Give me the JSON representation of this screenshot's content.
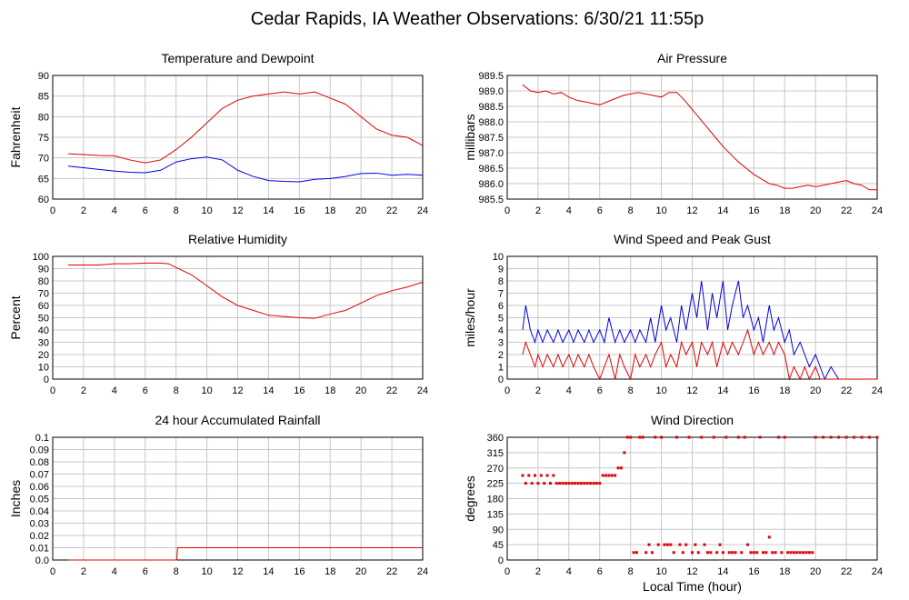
{
  "page_title": "Cedar Rapids, IA Weather Observations: 6/30/21 11:55p",
  "chart_data": [
    {
      "id": "temp",
      "type": "line",
      "title": "Temperature and Dewpoint",
      "ylabel": "Fahrenheit",
      "xlabel": "",
      "xlim": [
        0,
        24
      ],
      "ylim": [
        60,
        90
      ],
      "xticks": [
        0,
        2,
        4,
        6,
        8,
        10,
        12,
        14,
        16,
        18,
        20,
        22,
        24
      ],
      "yticks": [
        60,
        65,
        70,
        75,
        80,
        85,
        90
      ],
      "ytick_labels": [
        "60",
        "65",
        "70",
        "75",
        "80",
        "85",
        "90"
      ],
      "grid": true,
      "series": [
        {
          "color": "#e00000",
          "x": [
            1,
            2,
            3,
            4,
            5,
            6,
            7,
            8,
            9,
            10,
            11,
            12,
            13,
            14,
            15,
            16,
            17,
            18,
            19,
            20,
            21,
            22,
            23,
            24
          ],
          "y": [
            71,
            70.8,
            70.6,
            70.5,
            69.5,
            68.8,
            69.5,
            72,
            75,
            78.5,
            82,
            84,
            85,
            85.5,
            86,
            85.5,
            86,
            84.5,
            83,
            80,
            77,
            75.5,
            75,
            73
          ]
        },
        {
          "color": "#0000e0",
          "x": [
            1,
            2,
            3,
            4,
            5,
            6,
            7,
            8,
            9,
            10,
            11,
            12,
            13,
            14,
            15,
            16,
            17,
            18,
            19,
            20,
            21,
            22,
            23,
            24
          ],
          "y": [
            68,
            67.6,
            67.2,
            66.8,
            66.5,
            66.4,
            67,
            69,
            69.8,
            70.2,
            69.5,
            67,
            65.5,
            64.5,
            64.3,
            64.2,
            64.8,
            65,
            65.5,
            66.2,
            66.3,
            65.8,
            66,
            65.8
          ]
        }
      ]
    },
    {
      "id": "pressure",
      "type": "line",
      "title": "Air Pressure",
      "ylabel": "millibars",
      "xlabel": "",
      "xlim": [
        0,
        24
      ],
      "ylim": [
        985.5,
        989.5
      ],
      "xticks": [
        0,
        2,
        4,
        6,
        8,
        10,
        12,
        14,
        16,
        18,
        20,
        22,
        24
      ],
      "yticks": [
        985.5,
        986,
        986.5,
        987,
        987.5,
        988,
        988.5,
        989,
        989.5
      ],
      "ytick_labels": [
        "985.5",
        "986.0",
        "986.5",
        "987.0",
        "987.5",
        "988.0",
        "988.5",
        "989.0",
        "989.5"
      ],
      "grid": true,
      "series": [
        {
          "color": "#e00000",
          "x": [
            1,
            1.5,
            2,
            2.5,
            3,
            3.5,
            4,
            4.5,
            5,
            5.5,
            6,
            6.5,
            7,
            7.5,
            8,
            8.5,
            9,
            9.5,
            10,
            10.5,
            11,
            11.5,
            12,
            12.5,
            13,
            13.5,
            14,
            14.5,
            15,
            15.5,
            16,
            16.5,
            17,
            17.5,
            18,
            18.5,
            19,
            19.5,
            20,
            20.5,
            21,
            21.5,
            22,
            22.5,
            23,
            23.5,
            24
          ],
          "y": [
            989.2,
            989.0,
            988.95,
            989.0,
            988.9,
            988.95,
            988.8,
            988.7,
            988.65,
            988.6,
            988.55,
            988.65,
            988.75,
            988.85,
            988.9,
            988.95,
            988.9,
            988.85,
            988.8,
            988.95,
            988.95,
            988.7,
            988.4,
            988.1,
            987.8,
            987.5,
            987.2,
            986.95,
            986.7,
            986.5,
            986.3,
            986.15,
            986.0,
            985.95,
            985.85,
            985.85,
            985.9,
            985.95,
            985.9,
            985.95,
            986.0,
            986.05,
            986.1,
            986.0,
            985.95,
            985.8,
            985.8
          ]
        }
      ]
    },
    {
      "id": "humidity",
      "type": "line",
      "title": "Relative Humidity",
      "ylabel": "Percent",
      "xlabel": "",
      "xlim": [
        0,
        24
      ],
      "ylim": [
        0,
        100
      ],
      "xticks": [
        0,
        2,
        4,
        6,
        8,
        10,
        12,
        14,
        16,
        18,
        20,
        22,
        24
      ],
      "yticks": [
        0,
        10,
        20,
        30,
        40,
        50,
        60,
        70,
        80,
        90,
        100
      ],
      "ytick_labels": [
        "0",
        "10",
        "20",
        "30",
        "40",
        "50",
        "60",
        "70",
        "80",
        "90",
        "100"
      ],
      "grid": true,
      "series": [
        {
          "color": "#e00000",
          "x": [
            1,
            2,
            3,
            4,
            5,
            6,
            7,
            7.5,
            8,
            9,
            10,
            11,
            12,
            13,
            14,
            15,
            16,
            17,
            18,
            19,
            20,
            21,
            22,
            23,
            24
          ],
          "y": [
            93,
            93,
            93,
            94,
            94,
            94.5,
            94.5,
            94,
            91,
            85,
            76,
            67,
            60,
            56,
            52,
            51,
            50,
            49.5,
            53,
            56,
            62,
            68,
            72,
            75,
            79
          ]
        }
      ]
    },
    {
      "id": "wind",
      "type": "line",
      "title": "Wind Speed and Peak Gust",
      "ylabel": "miles/hour",
      "xlabel": "",
      "xlim": [
        0,
        24
      ],
      "ylim": [
        0,
        10
      ],
      "xticks": [
        0,
        2,
        4,
        6,
        8,
        10,
        12,
        14,
        16,
        18,
        20,
        22,
        24
      ],
      "yticks": [
        0,
        1,
        2,
        3,
        4,
        5,
        6,
        7,
        8,
        9,
        10
      ],
      "ytick_labels": [
        "0",
        "1",
        "2",
        "3",
        "4",
        "5",
        "6",
        "7",
        "8",
        "9",
        "10"
      ],
      "grid": true,
      "series": [
        {
          "color": "#0000e0",
          "x": [
            1,
            1.2,
            1.5,
            1.8,
            2,
            2.3,
            2.6,
            3,
            3.3,
            3.6,
            4,
            4.3,
            4.6,
            5,
            5.3,
            5.6,
            6,
            6.3,
            6.6,
            7,
            7.3,
            7.6,
            8,
            8.3,
            8.6,
            9,
            9.3,
            9.6,
            10,
            10.3,
            10.6,
            11,
            11.3,
            11.6,
            12,
            12.3,
            12.6,
            13,
            13.3,
            13.6,
            14,
            14.3,
            14.6,
            15,
            15.3,
            15.6,
            16,
            16.3,
            16.6,
            17,
            17.3,
            17.6,
            18,
            18.3,
            18.6,
            19,
            19.3,
            19.6,
            20,
            20.3,
            20.6,
            21,
            21.5,
            22,
            22.5,
            23,
            23.5,
            24
          ],
          "y": [
            4,
            6,
            4,
            3,
            4,
            3,
            4,
            3,
            4,
            3,
            4,
            3,
            4,
            3,
            4,
            3,
            4,
            3,
            5,
            3,
            4,
            3,
            4,
            3,
            4,
            3,
            5,
            3,
            6,
            4,
            5,
            3,
            6,
            4,
            7,
            5,
            8,
            4,
            7,
            5,
            8,
            4,
            6,
            8,
            5,
            6,
            4,
            5,
            3,
            6,
            4,
            5,
            3,
            4,
            2,
            3,
            2,
            1,
            2,
            1,
            0,
            1,
            0,
            0,
            0,
            0,
            0,
            0
          ]
        },
        {
          "color": "#e00000",
          "x": [
            1,
            1.2,
            1.5,
            1.8,
            2,
            2.3,
            2.6,
            3,
            3.3,
            3.6,
            4,
            4.3,
            4.6,
            5,
            5.3,
            5.6,
            6,
            6.3,
            6.6,
            7,
            7.3,
            7.6,
            8,
            8.3,
            8.6,
            9,
            9.3,
            9.6,
            10,
            10.3,
            10.6,
            11,
            11.3,
            11.6,
            12,
            12.3,
            12.6,
            13,
            13.3,
            13.6,
            14,
            14.3,
            14.6,
            15,
            15.3,
            15.6,
            16,
            16.3,
            16.6,
            17,
            17.3,
            17.6,
            18,
            18.3,
            18.6,
            19,
            19.3,
            19.6,
            20,
            20.3,
            20.6,
            21,
            21.5,
            22,
            22.5,
            23,
            23.5,
            24
          ],
          "y": [
            2,
            3,
            2,
            1,
            2,
            1,
            2,
            1,
            2,
            1,
            2,
            1,
            2,
            1,
            2,
            1,
            0,
            1,
            2,
            0,
            2,
            1,
            0,
            2,
            1,
            2,
            1,
            2,
            3,
            1,
            2,
            1,
            3,
            2,
            3,
            1,
            3,
            2,
            3,
            1,
            3,
            2,
            3,
            2,
            3,
            4,
            2,
            3,
            2,
            3,
            2,
            3,
            2,
            0,
            1,
            0,
            1,
            0,
            1,
            0,
            0,
            0,
            0,
            0,
            0,
            0,
            0,
            0
          ]
        }
      ]
    },
    {
      "id": "rain",
      "type": "line",
      "title": "24 hour Accumulated Rainfall",
      "ylabel": "Inches",
      "xlabel": "",
      "xlim": [
        0,
        24
      ],
      "ylim": [
        0,
        0.1
      ],
      "xticks": [
        0,
        2,
        4,
        6,
        8,
        10,
        12,
        14,
        16,
        18,
        20,
        22,
        24
      ],
      "yticks": [
        0,
        0.01,
        0.02,
        0.03,
        0.04,
        0.05,
        0.06,
        0.07,
        0.08,
        0.09,
        0.1
      ],
      "ytick_labels": [
        "0.0",
        "0.01",
        "0.02",
        "0.03",
        "0.04",
        "0.05",
        "0.06",
        "0.07",
        "0.08",
        "0.09",
        "0.1"
      ],
      "grid": true,
      "series": [
        {
          "color": "#e00000",
          "x": [
            1,
            8.05,
            8.1,
            24
          ],
          "y": [
            0,
            0,
            0.01,
            0.01
          ]
        }
      ]
    },
    {
      "id": "direction",
      "type": "scatter",
      "title": "Wind Direction",
      "ylabel": "degrees",
      "xlabel": "Local Time (hour)",
      "xlim": [
        0,
        24
      ],
      "ylim": [
        0,
        360
      ],
      "xticks": [
        0,
        2,
        4,
        6,
        8,
        10,
        12,
        14,
        16,
        18,
        20,
        22,
        24
      ],
      "yticks": [
        0,
        45,
        90,
        135,
        180,
        225,
        270,
        315,
        360
      ],
      "ytick_labels": [
        "0",
        "45",
        "90",
        "135",
        "180",
        "225",
        "270",
        "315",
        "360"
      ],
      "grid": true,
      "series": [
        {
          "color": "#e00000",
          "x": [
            1,
            1.2,
            1.4,
            1.6,
            1.8,
            2,
            2.2,
            2.4,
            2.6,
            2.8,
            3,
            3.2,
            3.4,
            3.6,
            3.8,
            4,
            4.2,
            4.4,
            4.6,
            4.8,
            5,
            5.2,
            5.4,
            5.6,
            5.8,
            6,
            6.2,
            6.4,
            6.6,
            6.8,
            7,
            7.2,
            7.4,
            7.6,
            7.8,
            8,
            8.2,
            8.4,
            8.6,
            8.8,
            9,
            9.2,
            9.4,
            9.6,
            9.8,
            10,
            10.2,
            10.4,
            10.6,
            10.8,
            11,
            11.2,
            11.4,
            11.6,
            11.8,
            12,
            12.2,
            12.4,
            12.6,
            12.8,
            13,
            13.2,
            13.4,
            13.6,
            13.8,
            14,
            14.2,
            14.4,
            14.6,
            14.8,
            15,
            15.2,
            15.4,
            15.6,
            15.8,
            16,
            16.2,
            16.4,
            16.6,
            16.8,
            17,
            17.2,
            17.4,
            17.6,
            17.8,
            18,
            18.2,
            18.4,
            18.6,
            18.8,
            19,
            19.2,
            19.4,
            19.6,
            19.8,
            20,
            20.5,
            21,
            21.5,
            22,
            22.5,
            23,
            23.5,
            24
          ],
          "y": [
            248,
            225,
            248,
            225,
            248,
            225,
            248,
            225,
            248,
            225,
            248,
            225,
            225,
            225,
            225,
            225,
            225,
            225,
            225,
            225,
            225,
            225,
            225,
            225,
            225,
            225,
            248,
            248,
            248,
            248,
            248,
            270,
            270,
            315,
            360,
            360,
            22,
            22,
            360,
            360,
            22,
            45,
            22,
            360,
            45,
            360,
            45,
            45,
            45,
            22,
            360,
            45,
            22,
            45,
            360,
            22,
            45,
            22,
            360,
            45,
            22,
            22,
            360,
            22,
            45,
            22,
            360,
            22,
            22,
            22,
            360,
            22,
            360,
            45,
            22,
            22,
            22,
            360,
            22,
            22,
            67,
            22,
            22,
            360,
            22,
            360,
            22,
            22,
            22,
            22,
            22,
            22,
            22,
            22,
            22,
            360,
            360,
            360,
            360,
            360,
            360,
            360,
            360,
            360
          ]
        }
      ]
    }
  ]
}
